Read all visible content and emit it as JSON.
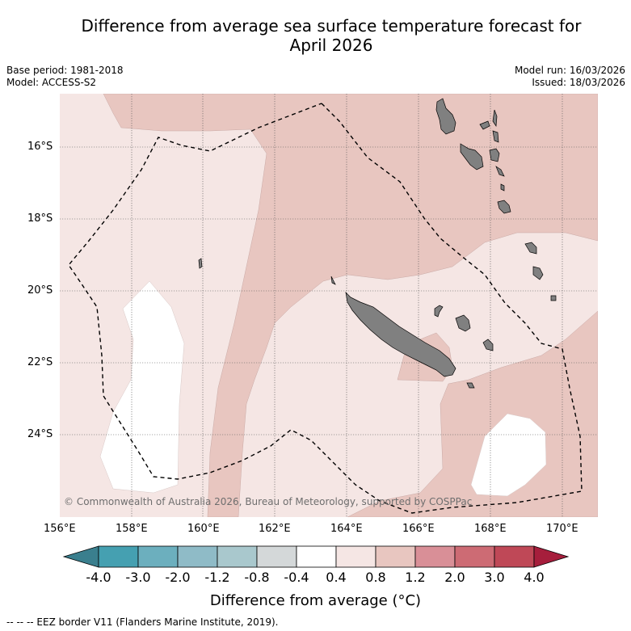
{
  "title_line1": "Difference from average sea surface temperature forecast for",
  "title_line2": "April 2026",
  "left_meta": {
    "base_period": "Base period: 1981-2018",
    "model": "Model: ACCESS-S2"
  },
  "right_meta": {
    "model_run": "Model run: 16/03/2026",
    "issued": "Issued: 18/03/2026"
  },
  "copyright": "© Commonwealth of Australia 2026, Bureau of Meteorology, supported by COSPPac",
  "lat_labels": [
    "16°S",
    "18°S",
    "20°S",
    "22°S",
    "24°S"
  ],
  "lon_labels": [
    "156°E",
    "158°E",
    "160°E",
    "162°E",
    "164°E",
    "166°E",
    "168°E",
    "170°E"
  ],
  "colorbar": {
    "labels": [
      "-4.0",
      "-3.0",
      "-2.0",
      "-1.2",
      "-0.8",
      "-0.4",
      "0.4",
      "0.8",
      "1.2",
      "2.0",
      "3.0",
      "4.0"
    ],
    "colors": [
      "#3a7f8e",
      "#45a0b1",
      "#6cafbe",
      "#8fbbc7",
      "#a9c8cd",
      "#d4d8d9",
      "#ffffff",
      "#f5e6e4",
      "#e8c6c0",
      "#d98f97",
      "#cd6b74",
      "#bf4857",
      "#a61e3c"
    ],
    "title": "Difference from average (°C)"
  },
  "footnote": "-- -- -- EEZ border V11 (Flanders Marine Institute, 2019).",
  "map_colors": {
    "light": "#f5e6e4",
    "medium": "#e8c6c0",
    "land": "#808080",
    "white": "#ffffff"
  }
}
